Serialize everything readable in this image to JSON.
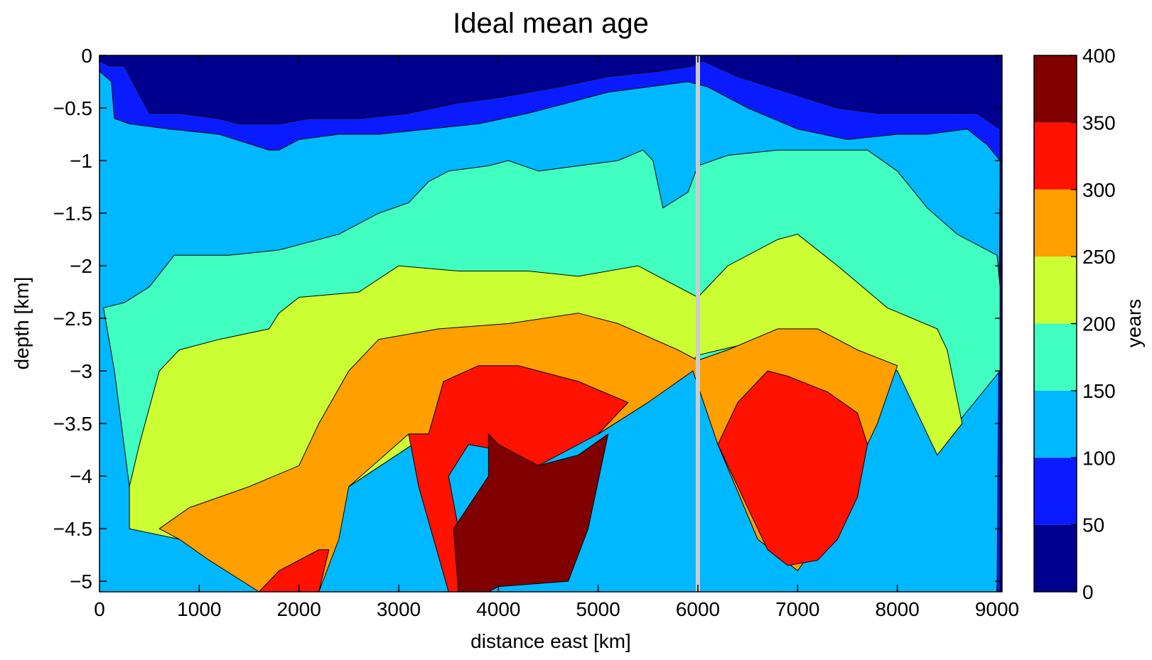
{
  "chart_data": {
    "type": "contour",
    "title": "Ideal mean age",
    "xlabel": "distance east [km]",
    "ylabel": "depth [km]",
    "xlim": [
      0,
      9050
    ],
    "ylim": [
      -5.1,
      0
    ],
    "x_ticks": [
      0,
      1000,
      2000,
      3000,
      4000,
      5000,
      6000,
      7000,
      8000,
      9000
    ],
    "x_tick_labels": [
      "0",
      "1000",
      "2000",
      "3000",
      "4000",
      "5000",
      "6000",
      "7000",
      "8000",
      "9000"
    ],
    "y_ticks": [
      0,
      -0.5,
      -1,
      -1.5,
      -2,
      -2.5,
      -3,
      -3.5,
      -4,
      -4.5,
      -5
    ],
    "y_tick_labels": [
      "0",
      "−0.5",
      "−1",
      "−1.5",
      "−2",
      "−2.5",
      "−3",
      "−3.5",
      "−4",
      "−4.5",
      "−5"
    ],
    "colorbar": {
      "label": "years",
      "range": [
        0,
        400
      ],
      "tick_labels": [
        "0",
        "50",
        "100",
        "150",
        "200",
        "250",
        "300",
        "350",
        "400"
      ],
      "levels": [
        {
          "range": [
            0,
            50
          ],
          "color": "#00008f"
        },
        {
          "range": [
            50,
            100
          ],
          "color": "#0a1cff"
        },
        {
          "range": [
            100,
            150
          ],
          "color": "#00b8ff"
        },
        {
          "range": [
            150,
            200
          ],
          "color": "#40ffc0"
        },
        {
          "range": [
            200,
            250
          ],
          "color": "#ccff33"
        },
        {
          "range": [
            250,
            300
          ],
          "color": "#ff9f00"
        },
        {
          "range": [
            300,
            350
          ],
          "color": "#ff1200"
        },
        {
          "range": [
            350,
            400
          ],
          "color": "#800000"
        }
      ]
    },
    "ridge_marker": {
      "x": 6000,
      "color": "#cccccc"
    },
    "contour_regions": [
      {
        "level": 0,
        "points": [
          [
            0,
            0
          ],
          [
            9050,
            0
          ],
          [
            9050,
            -5.1
          ],
          [
            0,
            -5.1
          ]
        ]
      },
      {
        "level": 1,
        "points": [
          [
            0,
            -0.05
          ],
          [
            100,
            -0.1
          ],
          [
            250,
            -0.1
          ],
          [
            500,
            -0.55
          ],
          [
            800,
            -0.55
          ],
          [
            1200,
            -0.6
          ],
          [
            1400,
            -0.65
          ],
          [
            1800,
            -0.65
          ],
          [
            2100,
            -0.6
          ],
          [
            2600,
            -0.6
          ],
          [
            3100,
            -0.55
          ],
          [
            3600,
            -0.45
          ],
          [
            4000,
            -0.4
          ],
          [
            4600,
            -0.3
          ],
          [
            5100,
            -0.2
          ],
          [
            5600,
            -0.15
          ],
          [
            5950,
            -0.1
          ],
          [
            6050,
            -0.05
          ],
          [
            6400,
            -0.2
          ],
          [
            6900,
            -0.35
          ],
          [
            7400,
            -0.5
          ],
          [
            7800,
            -0.55
          ],
          [
            8300,
            -0.55
          ],
          [
            8800,
            -0.55
          ],
          [
            9030,
            -0.7
          ],
          [
            9030,
            -5.1
          ],
          [
            0,
            -5.1
          ]
        ]
      },
      {
        "level": 2,
        "points": [
          [
            0,
            -0.15
          ],
          [
            120,
            -0.25
          ],
          [
            150,
            -0.6
          ],
          [
            300,
            -0.65
          ],
          [
            700,
            -0.7
          ],
          [
            1200,
            -0.75
          ],
          [
            1700,
            -0.9
          ],
          [
            1800,
            -0.9
          ],
          [
            2000,
            -0.8
          ],
          [
            2400,
            -0.75
          ],
          [
            2800,
            -0.75
          ],
          [
            3300,
            -0.7
          ],
          [
            3800,
            -0.65
          ],
          [
            4300,
            -0.55
          ],
          [
            4700,
            -0.45
          ],
          [
            5100,
            -0.35
          ],
          [
            5500,
            -0.3
          ],
          [
            5900,
            -0.25
          ],
          [
            6100,
            -0.3
          ],
          [
            6500,
            -0.5
          ],
          [
            7000,
            -0.7
          ],
          [
            7500,
            -0.8
          ],
          [
            8000,
            -0.75
          ],
          [
            8300,
            -0.75
          ],
          [
            8700,
            -0.7
          ],
          [
            8900,
            -0.85
          ],
          [
            9030,
            -1.0
          ],
          [
            9030,
            -1.2
          ],
          [
            9000,
            -5.1
          ],
          [
            0,
            -5.1
          ]
        ]
      },
      {
        "level": 3,
        "points": [
          [
            40,
            -2.4
          ],
          [
            250,
            -2.35
          ],
          [
            500,
            -2.2
          ],
          [
            750,
            -1.9
          ],
          [
            1300,
            -1.9
          ],
          [
            1800,
            -1.85
          ],
          [
            2400,
            -1.7
          ],
          [
            2800,
            -1.5
          ],
          [
            3100,
            -1.4
          ],
          [
            3300,
            -1.2
          ],
          [
            3500,
            -1.1
          ],
          [
            3900,
            -1.05
          ],
          [
            4100,
            -1.0
          ],
          [
            4400,
            -1.1
          ],
          [
            4800,
            -1.05
          ],
          [
            5200,
            -1.0
          ],
          [
            5450,
            -0.9
          ],
          [
            5550,
            -1.0
          ],
          [
            5650,
            -1.45
          ],
          [
            5900,
            -1.3
          ],
          [
            6000,
            -1.05
          ],
          [
            6300,
            -0.95
          ],
          [
            6800,
            -0.9
          ],
          [
            7300,
            -0.9
          ],
          [
            7700,
            -0.9
          ],
          [
            8000,
            -1.1
          ],
          [
            8300,
            -1.45
          ],
          [
            8600,
            -1.7
          ],
          [
            9000,
            -1.9
          ],
          [
            9030,
            -2.2
          ],
          [
            9030,
            -3.0
          ],
          [
            8600,
            -3.5
          ],
          [
            8400,
            -2.6
          ],
          [
            8000,
            -2.9
          ],
          [
            7600,
            -2.8
          ],
          [
            6900,
            -2.6
          ],
          [
            6000,
            -2.9
          ],
          [
            5500,
            -3.3
          ],
          [
            5000,
            -3.6
          ],
          [
            4000,
            -3.3
          ],
          [
            3300,
            -3.6
          ],
          [
            2500,
            -4.1
          ],
          [
            1600,
            -4.5
          ],
          [
            1000,
            -4.5
          ],
          [
            600,
            -4.5
          ],
          [
            300,
            -4.1
          ],
          [
            150,
            -3.0
          ]
        ]
      },
      {
        "level": 4,
        "points": [
          [
            300,
            -4.1
          ],
          [
            400,
            -3.7
          ],
          [
            600,
            -3.0
          ],
          [
            800,
            -2.8
          ],
          [
            1200,
            -2.7
          ],
          [
            1700,
            -2.6
          ],
          [
            1800,
            -2.45
          ],
          [
            2000,
            -2.3
          ],
          [
            2600,
            -2.25
          ],
          [
            3000,
            -2.0
          ],
          [
            3600,
            -2.05
          ],
          [
            4300,
            -2.05
          ],
          [
            4800,
            -2.1
          ],
          [
            5400,
            -2.0
          ],
          [
            6000,
            -2.3
          ],
          [
            6300,
            -2.0
          ],
          [
            6800,
            -1.75
          ],
          [
            7000,
            -1.7
          ],
          [
            7400,
            -2.0
          ],
          [
            7900,
            -2.4
          ],
          [
            8400,
            -2.6
          ],
          [
            8500,
            -2.8
          ],
          [
            8650,
            -3.5
          ],
          [
            8400,
            -3.8
          ],
          [
            8000,
            -3.0
          ],
          [
            7600,
            -2.9
          ],
          [
            6900,
            -2.65
          ],
          [
            6000,
            -2.85
          ],
          [
            5500,
            -3.3
          ],
          [
            5000,
            -3.6
          ],
          [
            4000,
            -3.3
          ],
          [
            3300,
            -3.6
          ],
          [
            2500,
            -4.1
          ],
          [
            1600,
            -4.5
          ],
          [
            800,
            -4.6
          ],
          [
            300,
            -4.5
          ]
        ]
      },
      {
        "level": 5,
        "points": [
          [
            600,
            -4.5
          ],
          [
            900,
            -4.3
          ],
          [
            1500,
            -4.1
          ],
          [
            2000,
            -3.9
          ],
          [
            2200,
            -3.5
          ],
          [
            2500,
            -3.0
          ],
          [
            2800,
            -2.7
          ],
          [
            3400,
            -2.6
          ],
          [
            4100,
            -2.55
          ],
          [
            4800,
            -2.45
          ],
          [
            5200,
            -2.55
          ],
          [
            5800,
            -2.8
          ],
          [
            6000,
            -2.9
          ],
          [
            6300,
            -2.8
          ],
          [
            6800,
            -2.6
          ],
          [
            7200,
            -2.6
          ],
          [
            7600,
            -2.8
          ],
          [
            8000,
            -2.95
          ],
          [
            7800,
            -3.5
          ],
          [
            7600,
            -3.9
          ],
          [
            7300,
            -4.5
          ],
          [
            7000,
            -4.9
          ],
          [
            6600,
            -4.6
          ],
          [
            6200,
            -3.7
          ],
          [
            5950,
            -3.0
          ],
          [
            5500,
            -3.3
          ],
          [
            5000,
            -3.6
          ],
          [
            4000,
            -3.3
          ],
          [
            3300,
            -3.6
          ],
          [
            3100,
            -3.6
          ],
          [
            2500,
            -4.1
          ],
          [
            2400,
            -4.6
          ],
          [
            2200,
            -5.1
          ],
          [
            1600,
            -5.1
          ],
          [
            1100,
            -4.8
          ],
          [
            800,
            -4.6
          ]
        ]
      },
      {
        "level": 6,
        "points": [
          [
            1600,
            -5.1
          ],
          [
            1800,
            -4.9
          ],
          [
            2200,
            -4.7
          ],
          [
            2300,
            -4.7
          ],
          [
            2200,
            -5.1
          ]
        ]
      },
      {
        "level": 6,
        "points": [
          [
            3300,
            -3.6
          ],
          [
            3450,
            -3.1
          ],
          [
            3800,
            -2.95
          ],
          [
            4200,
            -2.95
          ],
          [
            4800,
            -3.1
          ],
          [
            5300,
            -3.3
          ],
          [
            5000,
            -3.6
          ],
          [
            4400,
            -3.9
          ],
          [
            4000,
            -3.75
          ],
          [
            3700,
            -3.7
          ],
          [
            3500,
            -4.0
          ],
          [
            3600,
            -4.5
          ],
          [
            3650,
            -5.1
          ],
          [
            3500,
            -5.1
          ],
          [
            3200,
            -4.1
          ],
          [
            3100,
            -3.6
          ]
        ]
      },
      {
        "level": 7,
        "points": [
          [
            3600,
            -5.1
          ],
          [
            3550,
            -4.5
          ],
          [
            3900,
            -4.0
          ],
          [
            3900,
            -3.6
          ],
          [
            4000,
            -3.7
          ],
          [
            4400,
            -3.9
          ],
          [
            4800,
            -3.8
          ],
          [
            5100,
            -3.6
          ],
          [
            4900,
            -4.5
          ],
          [
            4700,
            -5.0
          ],
          [
            4000,
            -5.05
          ],
          [
            3900,
            -5.1
          ]
        ]
      },
      {
        "level": 6,
        "points": [
          [
            6200,
            -3.7
          ],
          [
            6400,
            -3.3
          ],
          [
            6700,
            -3.0
          ],
          [
            6900,
            -3.05
          ],
          [
            7300,
            -3.2
          ],
          [
            7600,
            -3.4
          ],
          [
            7700,
            -3.7
          ],
          [
            7600,
            -4.2
          ],
          [
            7400,
            -4.6
          ],
          [
            7200,
            -4.8
          ],
          [
            6900,
            -4.85
          ],
          [
            6700,
            -4.7
          ],
          [
            6500,
            -4.3
          ],
          [
            6300,
            -3.9
          ]
        ]
      }
    ]
  }
}
